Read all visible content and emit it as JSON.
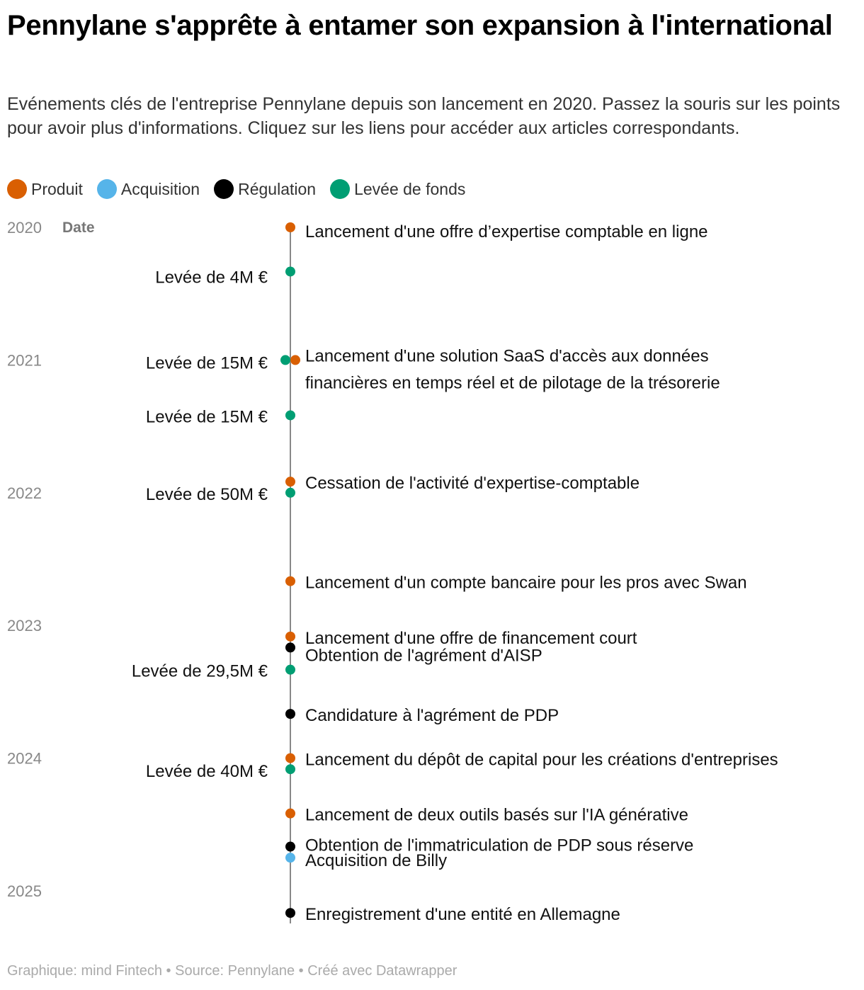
{
  "title": "Pennylane s'apprête à entamer son expansion à l'international",
  "subtitle": "Evénements clés de l'entreprise Pennylane depuis son lancement en 2020. Passez la souris sur les points pour avoir plus d'informations. Cliquez sur les liens pour accéder aux articles correspondants.",
  "legend": [
    {
      "label": "Produit",
      "color": "#d95f02"
    },
    {
      "label": "Acquisition",
      "color": "#56b4e9"
    },
    {
      "label": "Régulation",
      "color": "#000000"
    },
    {
      "label": "Levée de fonds",
      "color": "#009e73"
    }
  ],
  "footer": "Graphique: mind Fintech • Source: Pennylane • Créé avec Datawrapper",
  "chart_data": {
    "type": "scatter",
    "axis_label": "Date",
    "ylim": [
      2020,
      2025.25
    ],
    "y_ticks": [
      "2020",
      "2021",
      "2022",
      "2023",
      "2024",
      "2025"
    ],
    "events": [
      {
        "date": "2020-01",
        "category": "Produit",
        "label": "Lancement d'une offre d’expertise comptable en ligne",
        "side": "right"
      },
      {
        "date": "2020-05",
        "category": "Levée de fonds",
        "label": "Levée de 4M €",
        "side": "left"
      },
      {
        "date": "2021-01",
        "category": "Levée de fonds",
        "label": "Levée de 15M €",
        "side": "left"
      },
      {
        "date": "2021-01",
        "category": "Produit",
        "label": "Lancement d'une solution SaaS d'accès aux données financières en temps réel et de pilotage de la trésorerie",
        "side": "right"
      },
      {
        "date": "2021-06",
        "category": "Levée de fonds",
        "label": "Levée de 15M €",
        "side": "left"
      },
      {
        "date": "2021-12",
        "category": "Produit",
        "label": "Cessation de l'activité d'expertise-comptable",
        "side": "right"
      },
      {
        "date": "2022-01",
        "category": "Levée de fonds",
        "label": "Levée de 50M €",
        "side": "left"
      },
      {
        "date": "2022-09",
        "category": "Produit",
        "label": "Lancement d'un compte bancaire pour les pros avec Swan",
        "side": "right"
      },
      {
        "date": "2023-02",
        "category": "Produit",
        "label": "Lancement d'une offre de financement court",
        "side": "right"
      },
      {
        "date": "2023-03",
        "category": "Régulation",
        "label": "Obtention de l'agrément d'AISP",
        "side": "right"
      },
      {
        "date": "2023-05",
        "category": "Levée de fonds",
        "label": "Levée de 29,5M €",
        "side": "left"
      },
      {
        "date": "2023-09",
        "category": "Régulation",
        "label": "Candidature à l'agrément de PDP",
        "side": "right"
      },
      {
        "date": "2024-01",
        "category": "Produit",
        "label": "Lancement du dépôt de capital pour les créations d'entreprises",
        "side": "right"
      },
      {
        "date": "2024-02",
        "category": "Levée de fonds",
        "label": "Levée de 40M €",
        "side": "left"
      },
      {
        "date": "2024-06",
        "category": "Produit",
        "label": "Lancement de deux outils basés sur l'IA générative",
        "side": "right"
      },
      {
        "date": "2024-09",
        "category": "Régulation",
        "label": "Obtention de l'immatriculation de PDP sous réserve",
        "side": "right"
      },
      {
        "date": "2024-10",
        "category": "Acquisition",
        "label": "Acquisition de Billy",
        "side": "right"
      },
      {
        "date": "2025-03",
        "category": "Régulation",
        "label": "Enregistrement d'une entité en Allemagne",
        "side": "right"
      }
    ]
  }
}
